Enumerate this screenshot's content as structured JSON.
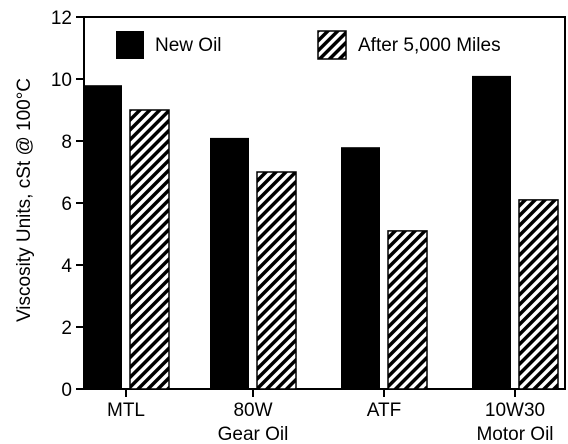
{
  "chart_data": {
    "type": "bar",
    "title": "",
    "xlabel": "",
    "ylabel": "Viscosity Units, cSt @ 100°C",
    "ylim": [
      0,
      12
    ],
    "yticks": [
      "0",
      "2",
      "4",
      "6",
      "8",
      "10",
      "12"
    ],
    "categories": [
      {
        "line1": "MTL",
        "line2": ""
      },
      {
        "line1": "80W",
        "line2": "Gear Oil"
      },
      {
        "line1": "ATF",
        "line2": ""
      },
      {
        "line1": "10W30",
        "line2": "Motor Oil"
      }
    ],
    "series": [
      {
        "name": "New Oil",
        "values": [
          9.8,
          8.1,
          7.8,
          10.1
        ],
        "fill": "#000000"
      },
      {
        "name": "After 5,000 Miles",
        "values": [
          9.0,
          7.0,
          5.1,
          6.1
        ],
        "fill": "hatch"
      }
    ],
    "legend_position": "top",
    "grid": false
  }
}
